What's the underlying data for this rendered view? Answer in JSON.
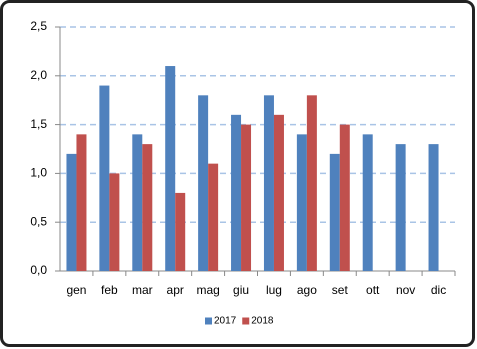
{
  "chart_data": {
    "type": "bar",
    "categories": [
      "gen",
      "feb",
      "mar",
      "apr",
      "mag",
      "giu",
      "lug",
      "ago",
      "set",
      "ott",
      "nov",
      "dic"
    ],
    "series": [
      {
        "name": "2017",
        "color": "#4f81bd",
        "values": [
          1.2,
          1.9,
          1.4,
          2.1,
          1.8,
          1.6,
          1.8,
          1.4,
          1.2,
          1.4,
          1.3,
          1.3
        ]
      },
      {
        "name": "2018",
        "color": "#c0504d",
        "values": [
          1.4,
          1.0,
          1.3,
          0.8,
          1.1,
          1.5,
          1.6,
          1.8,
          1.5,
          null,
          null,
          null
        ]
      }
    ],
    "ylim": [
      0,
      2.5
    ],
    "yticks": [
      {
        "value": 0,
        "label": "0,0"
      },
      {
        "value": 0.5,
        "label": "0,5"
      },
      {
        "value": 1,
        "label": "1,0"
      },
      {
        "value": 1.5,
        "label": "1,5"
      },
      {
        "value": 2,
        "label": "2,0"
      },
      {
        "value": 2.5,
        "label": "2,5"
      }
    ],
    "grid": true,
    "legend": "bottom"
  }
}
